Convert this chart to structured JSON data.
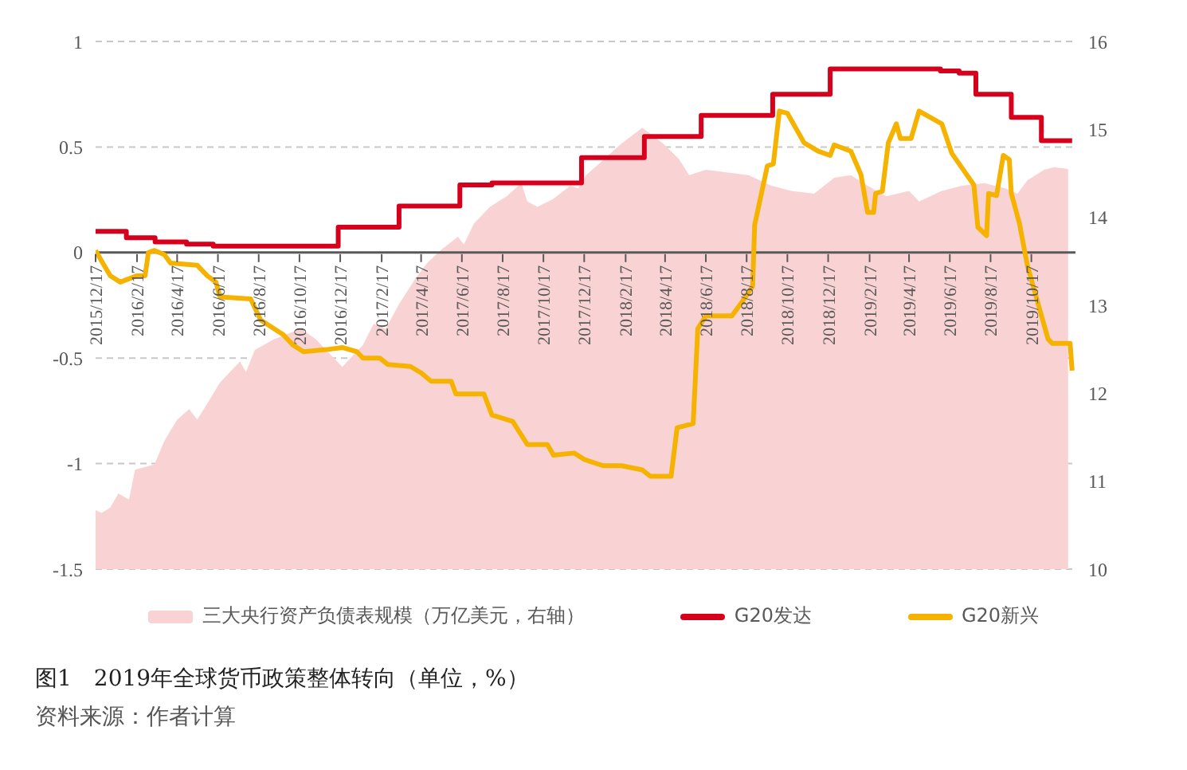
{
  "chart_data": {
    "type": "line",
    "title": "图1　2019年全球货币政策整体转向（单位，%）",
    "annotations": [
      "资料来源：作者计算"
    ],
    "xlim": [
      "2015-12-17",
      "2019-12-22"
    ],
    "xticks": [
      {
        "value": "2015-12-17",
        "label": "2015/12/17"
      },
      {
        "value": "2016-02-17",
        "label": "2016/2/17"
      },
      {
        "value": "2016-04-17",
        "label": "2016/4/17"
      },
      {
        "value": "2016-06-17",
        "label": "2016/6/17"
      },
      {
        "value": "2016-08-17",
        "label": "2016/8/17"
      },
      {
        "value": "2016-10-17",
        "label": "2016/10/17"
      },
      {
        "value": "2016-12-17",
        "label": "2016/12/17"
      },
      {
        "value": "2017-02-17",
        "label": "2017/2/17"
      },
      {
        "value": "2017-04-17",
        "label": "2017/4/17"
      },
      {
        "value": "2017-06-17",
        "label": "2017/6/17"
      },
      {
        "value": "2017-08-17",
        "label": "2017/8/17"
      },
      {
        "value": "2017-10-17",
        "label": "2017/10/17"
      },
      {
        "value": "2017-12-17",
        "label": "2017/12/17"
      },
      {
        "value": "2018-02-17",
        "label": "2018/2/17"
      },
      {
        "value": "2018-04-17",
        "label": "2018/4/17"
      },
      {
        "value": "2018-06-17",
        "label": "2018/6/17"
      },
      {
        "value": "2018-08-17",
        "label": "2018/8/17"
      },
      {
        "value": "2018-10-17",
        "label": "2018/10/17"
      },
      {
        "value": "2018-12-17",
        "label": "2018/12/17"
      },
      {
        "value": "2019-02-17",
        "label": "2019/2/17"
      },
      {
        "value": "2019-04-17",
        "label": "2019/4/17"
      },
      {
        "value": "2019-06-17",
        "label": "2019/6/17"
      },
      {
        "value": "2019-08-17",
        "label": "2019/8/17"
      },
      {
        "value": "2019-10-17",
        "label": "2019/10/17"
      }
    ],
    "ylim": [
      -1.5,
      1
    ],
    "yticks": [
      -1.5,
      -1,
      -0.5,
      0,
      0.5,
      1
    ],
    "y2lim": [
      10,
      16
    ],
    "y2ticks": [
      10,
      11,
      12,
      13,
      14,
      15,
      16
    ],
    "grid": "y",
    "legend": "bottom",
    "marker": "none",
    "series": [
      {
        "name": "三大央行资产负债表规模（万亿美元，右轴）",
        "type": "area",
        "axis": "y2",
        "color": "#f9d3d3",
        "x": [
          "2015-12-17",
          "2015-12-26",
          "2016-01-08",
          "2016-01-20",
          "2016-02-05",
          "2016-02-14",
          "2016-03-14",
          "2016-03-29",
          "2016-04-17",
          "2016-05-05",
          "2016-05-17",
          "2016-06-01",
          "2016-06-20",
          "2016-07-20",
          "2016-07-29",
          "2016-08-11",
          "2016-09-08",
          "2016-10-08",
          "2016-10-20",
          "2016-11-11",
          "2016-11-26",
          "2016-12-20",
          "2017-01-20",
          "2017-02-05",
          "2017-02-23",
          "2017-03-14",
          "2017-04-08",
          "2017-04-26",
          "2017-05-17",
          "2017-06-11",
          "2017-06-20",
          "2017-07-05",
          "2017-07-29",
          "2017-08-23",
          "2017-09-14",
          "2017-09-23",
          "2017-10-08",
          "2017-11-01",
          "2017-11-26",
          "2017-12-08",
          "2017-12-20",
          "2018-01-11",
          "2018-02-11",
          "2018-03-14",
          "2018-04-14",
          "2018-05-08",
          "2018-05-23",
          "2018-06-17",
          "2018-07-20",
          "2018-08-20",
          "2018-09-23",
          "2018-10-23",
          "2018-11-26",
          "2018-12-26",
          "2019-01-20",
          "2019-02-14",
          "2019-03-14",
          "2019-04-17",
          "2019-05-02",
          "2019-06-05",
          "2019-07-05",
          "2019-08-08",
          "2019-09-08",
          "2019-09-26",
          "2019-10-11",
          "2019-11-05",
          "2019-11-20",
          "2019-12-11"
        ],
        "values": [
          10.67,
          10.64,
          10.7,
          10.86,
          10.79,
          11.13,
          11.19,
          11.46,
          11.7,
          11.82,
          11.7,
          11.88,
          12.12,
          12.36,
          12.24,
          12.49,
          12.61,
          12.7,
          12.73,
          12.61,
          12.49,
          12.3,
          12.55,
          12.79,
          12.73,
          13.0,
          13.3,
          13.48,
          13.63,
          13.78,
          13.69,
          13.93,
          14.12,
          14.24,
          14.39,
          14.18,
          14.12,
          14.21,
          14.36,
          14.33,
          14.48,
          14.63,
          14.84,
          15.02,
          14.84,
          14.66,
          14.48,
          14.54,
          14.51,
          14.48,
          14.36,
          14.3,
          14.27,
          14.45,
          14.48,
          14.36,
          14.24,
          14.3,
          14.18,
          14.3,
          14.36,
          14.39,
          14.33,
          14.27,
          14.42,
          14.54,
          14.57,
          14.55
        ]
      },
      {
        "name": "G20发达",
        "type": "step",
        "color": "#d7001c",
        "x": [
          "2015-12-17",
          "2016-02-01",
          "2016-03-15",
          "2016-05-01",
          "2016-06-10",
          "2016-12-14",
          "2017-03-15",
          "2017-06-14",
          "2017-08-01",
          "2017-12-13",
          "2018-03-17",
          "2018-06-10",
          "2018-09-25",
          "2018-12-20",
          "2019-06-03",
          "2019-07-01",
          "2019-07-26",
          "2019-09-17",
          "2019-11-01",
          "2019-12-17"
        ],
        "values": [
          0.1,
          0.07,
          0.05,
          0.04,
          0.03,
          0.12,
          0.22,
          0.32,
          0.33,
          0.45,
          0.55,
          0.65,
          0.75,
          0.87,
          0.86,
          0.85,
          0.75,
          0.64,
          0.53,
          0.53
        ]
      },
      {
        "name": "G20新兴",
        "color": "#f5b300",
        "x": [
          "2015-12-17",
          "2015-12-26",
          "2016-01-08",
          "2016-01-23",
          "2016-02-17",
          "2016-02-29",
          "2016-03-05",
          "2016-03-14",
          "2016-03-29",
          "2016-04-07",
          "2016-05-17",
          "2016-06-01",
          "2016-06-14",
          "2016-06-20",
          "2016-08-05",
          "2016-08-20",
          "2016-09-23",
          "2016-10-08",
          "2016-10-23",
          "2016-11-26",
          "2016-12-20",
          "2017-01-11",
          "2017-01-20",
          "2017-02-14",
          "2017-02-26",
          "2017-04-01",
          "2017-04-17",
          "2017-05-02",
          "2017-06-01",
          "2017-06-08",
          "2017-07-20",
          "2017-08-01",
          "2017-09-01",
          "2017-09-23",
          "2017-10-23",
          "2017-11-01",
          "2017-12-02",
          "2017-12-17",
          "2018-01-14",
          "2018-02-11",
          "2018-03-14",
          "2018-03-26",
          "2018-04-26",
          "2018-05-05",
          "2018-05-29",
          "2018-06-05",
          "2018-06-17",
          "2018-07-26",
          "2018-08-11",
          "2018-08-26",
          "2018-08-29",
          "2018-09-17",
          "2018-09-26",
          "2018-10-05",
          "2018-10-17",
          "2018-11-11",
          "2018-12-02",
          "2018-12-20",
          "2018-12-26",
          "2019-01-20",
          "2019-02-04",
          "2019-02-14",
          "2019-02-23",
          "2019-02-26",
          "2019-03-08",
          "2019-03-17",
          "2019-03-29",
          "2019-04-04",
          "2019-04-20",
          "2019-05-02",
          "2019-06-05",
          "2019-06-20",
          "2019-07-23",
          "2019-07-29",
          "2019-08-11",
          "2019-08-14",
          "2019-08-26",
          "2019-09-05",
          "2019-09-14",
          "2019-09-17",
          "2019-09-29",
          "2019-10-11",
          "2019-10-26",
          "2019-11-11",
          "2019-11-17",
          "2019-12-14",
          "2019-12-17"
        ],
        "values": [
          0.01,
          -0.04,
          -0.11,
          -0.14,
          -0.11,
          -0.11,
          0,
          0.01,
          -0.01,
          -0.05,
          -0.06,
          -0.11,
          -0.14,
          -0.21,
          -0.22,
          -0.32,
          -0.39,
          -0.44,
          -0.47,
          -0.46,
          -0.45,
          -0.47,
          -0.5,
          -0.5,
          -0.53,
          -0.54,
          -0.57,
          -0.61,
          -0.61,
          -0.67,
          -0.67,
          -0.77,
          -0.8,
          -0.91,
          -0.91,
          -0.96,
          -0.95,
          -0.98,
          -1.01,
          -1.01,
          -1.03,
          -1.06,
          -1.06,
          -0.83,
          -0.81,
          -0.36,
          -0.3,
          -0.3,
          -0.23,
          -0.16,
          0.13,
          0.41,
          0.42,
          0.67,
          0.66,
          0.52,
          0.48,
          0.46,
          0.51,
          0.48,
          0.37,
          0.19,
          0.19,
          0.28,
          0.29,
          0.52,
          0.61,
          0.54,
          0.54,
          0.67,
          0.61,
          0.47,
          0.32,
          0.12,
          0.08,
          0.28,
          0.27,
          0.46,
          0.44,
          0.28,
          0.14,
          -0.06,
          -0.23,
          -0.41,
          -0.43,
          -0.43,
          -0.56
        ]
      }
    ]
  }
}
